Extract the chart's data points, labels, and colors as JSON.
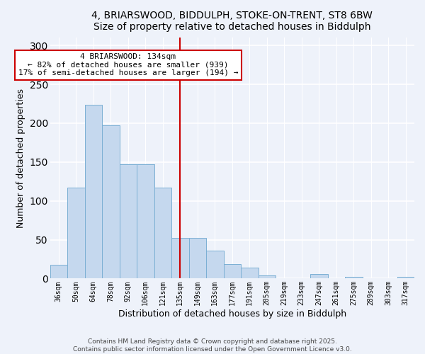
{
  "title": "4, BRIARSWOOD, BIDDULPH, STOKE-ON-TRENT, ST8 6BW",
  "subtitle": "Size of property relative to detached houses in Biddulph",
  "xlabel": "Distribution of detached houses by size in Biddulph",
  "ylabel": "Number of detached properties",
  "bar_labels": [
    "36sqm",
    "50sqm",
    "64sqm",
    "78sqm",
    "92sqm",
    "106sqm",
    "121sqm",
    "135sqm",
    "149sqm",
    "163sqm",
    "177sqm",
    "191sqm",
    "205sqm",
    "219sqm",
    "233sqm",
    "247sqm",
    "261sqm",
    "275sqm",
    "289sqm",
    "303sqm",
    "317sqm"
  ],
  "bar_values": [
    18,
    117,
    224,
    197,
    147,
    147,
    117,
    52,
    52,
    36,
    19,
    14,
    4,
    0,
    0,
    6,
    0,
    2,
    0,
    0,
    2
  ],
  "bar_color": "#c5d8ee",
  "bar_edge_color": "#7bafd4",
  "vline_x_label": "135sqm",
  "vline_color": "#cc0000",
  "ylim": [
    0,
    310
  ],
  "yticks": [
    0,
    50,
    100,
    150,
    200,
    250,
    300
  ],
  "annotation_title": "4 BRIARSWOOD: 134sqm",
  "annotation_line1": "← 82% of detached houses are smaller (939)",
  "annotation_line2": "17% of semi-detached houses are larger (194) →",
  "annotation_box_color": "#ffffff",
  "annotation_box_edge": "#cc0000",
  "footer_line1": "Contains HM Land Registry data © Crown copyright and database right 2025.",
  "footer_line2": "Contains public sector information licensed under the Open Government Licence v3.0.",
  "bg_color": "#eef2fa",
  "grid_color": "#ffffff",
  "title_fontsize": 10,
  "subtitle_fontsize": 9.5
}
